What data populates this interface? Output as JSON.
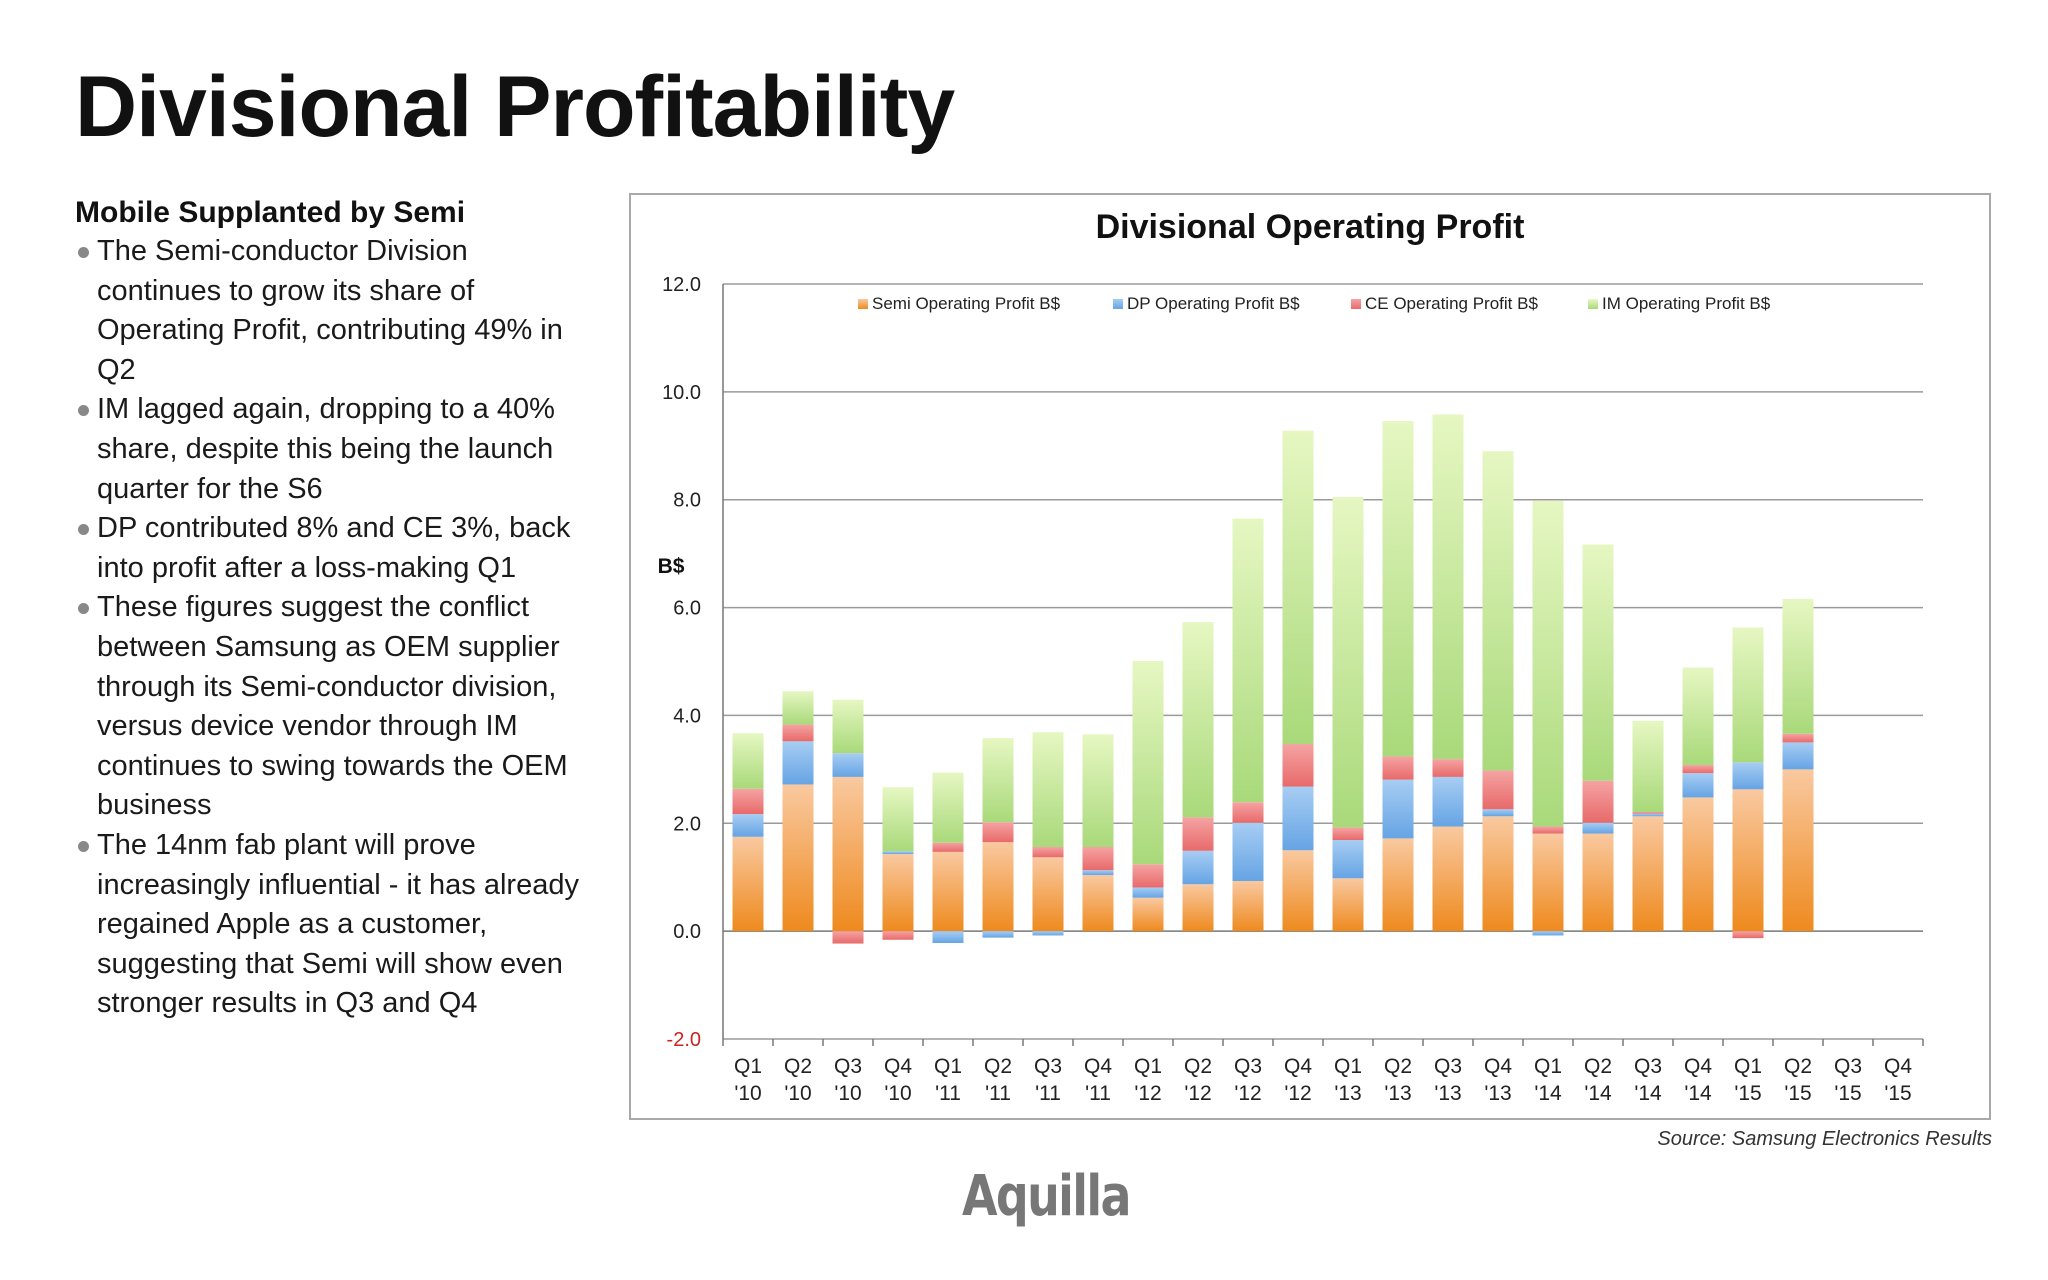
{
  "page": {
    "title": "Divisional Profitability",
    "subhead": "Mobile Supplanted by Semi",
    "bullets": [
      "The Semi-conductor Division continues to grow its share of Operating Profit, contributing 49% in Q2",
      "IM lagged again, dropping to a 40% share, despite this being the launch quarter for the S6",
      "DP contributed 8% and CE 3%, back into profit after a loss-making Q1",
      "These figures suggest the conflict between Samsung as OEM supplier through its Semi-conductor division, versus device vendor through IM continues to swing towards the OEM business",
      "The 14nm fab plant will prove increasingly influential - it has already regained Apple as a customer, suggesting that Semi will show even stronger results in Q3 and Q4"
    ],
    "source": "Source: Samsung Electronics Results",
    "logo_text": "Aquilla"
  },
  "chart_data": {
    "type": "bar",
    "stacked": true,
    "title": "Divisional Operating Profit",
    "xlabel": "",
    "ylabel": "B$",
    "ylim": [
      -2.0,
      12.0
    ],
    "yticks": [
      "-2.0",
      "0.0",
      "2.0",
      "4.0",
      "6.0",
      "8.0",
      "10.0",
      "12.0"
    ],
    "grid": true,
    "legend_position": "top",
    "categories": [
      [
        "Q1",
        "'10"
      ],
      [
        "Q2",
        "'10"
      ],
      [
        "Q3",
        "'10"
      ],
      [
        "Q4",
        "'10"
      ],
      [
        "Q1",
        "'11"
      ],
      [
        "Q2",
        "'11"
      ],
      [
        "Q3",
        "'11"
      ],
      [
        "Q4",
        "'11"
      ],
      [
        "Q1",
        "'12"
      ],
      [
        "Q2",
        "'12"
      ],
      [
        "Q3",
        "'12"
      ],
      [
        "Q4",
        "'12"
      ],
      [
        "Q1",
        "'13"
      ],
      [
        "Q2",
        "'13"
      ],
      [
        "Q3",
        "'13"
      ],
      [
        "Q4",
        "'13"
      ],
      [
        "Q1",
        "'14"
      ],
      [
        "Q2",
        "'14"
      ],
      [
        "Q3",
        "'14"
      ],
      [
        "Q4",
        "'14"
      ],
      [
        "Q1",
        "'15"
      ],
      [
        "Q2",
        "'15"
      ],
      [
        "Q3",
        "'15"
      ],
      [
        "Q4",
        "'15"
      ]
    ],
    "series": [
      {
        "name": "Semi Operating Profit B$",
        "color_top": "#f9c9a0",
        "color_bottom": "#ee8a1e",
        "values": [
          1.75,
          2.72,
          2.86,
          1.43,
          1.47,
          1.65,
          1.37,
          1.04,
          0.62,
          0.87,
          0.93,
          1.5,
          0.98,
          1.72,
          1.94,
          2.13,
          1.81,
          1.81,
          2.13,
          2.48,
          2.63,
          3.0,
          null,
          null
        ]
      },
      {
        "name": "DP Operating Profit B$",
        "color_top": "#a7cdf3",
        "color_bottom": "#66a4e4",
        "values": [
          0.42,
          0.8,
          0.44,
          0.05,
          -0.22,
          -0.12,
          -0.08,
          0.09,
          0.19,
          0.62,
          1.08,
          1.18,
          0.71,
          1.09,
          0.92,
          0.13,
          -0.08,
          0.2,
          0.05,
          0.45,
          0.5,
          0.5,
          null,
          null
        ]
      },
      {
        "name": "CE Operating Profit B$",
        "color_top": "#f5a3a3",
        "color_bottom": "#e86a6a",
        "values": [
          0.47,
          0.31,
          -0.23,
          -0.16,
          0.17,
          0.37,
          0.19,
          0.43,
          0.43,
          0.62,
          0.38,
          0.79,
          0.23,
          0.43,
          0.33,
          0.72,
          0.13,
          0.78,
          0.03,
          0.15,
          -0.13,
          0.16,
          null,
          null
        ]
      },
      {
        "name": "IM Operating Profit B$",
        "color_top": "#e6f7c2",
        "color_bottom": "#a9d97a",
        "values": [
          1.03,
          0.62,
          0.99,
          1.19,
          1.3,
          1.56,
          2.13,
          2.09,
          3.77,
          3.62,
          5.26,
          5.81,
          6.13,
          6.22,
          6.39,
          5.92,
          6.04,
          4.38,
          1.69,
          1.81,
          2.5,
          2.5,
          null,
          null
        ]
      }
    ]
  }
}
